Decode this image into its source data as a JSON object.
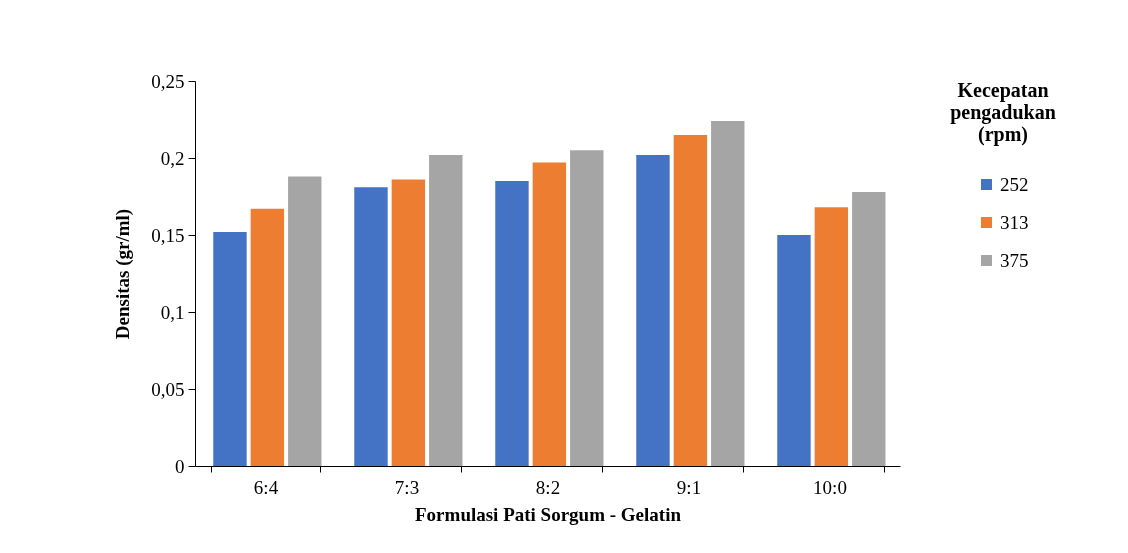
{
  "chart_data": {
    "type": "bar",
    "xlabel": "Formulasi Pati Sorgum - Gelatin",
    "ylabel": "Densitas (gr/ml)",
    "legend_title": "Kecepatan pengadukan (rpm)",
    "categories": [
      "6:4",
      "7:3",
      "8:2",
      "9:1",
      "10:0"
    ],
    "series": [
      {
        "name": "252",
        "color": "#4472c4",
        "values": [
          0.152,
          0.181,
          0.185,
          0.202,
          0.15
        ]
      },
      {
        "name": "313",
        "color": "#ed7d31",
        "values": [
          0.167,
          0.186,
          0.197,
          0.215,
          0.168
        ]
      },
      {
        "name": "375",
        "color": "#a5a5a5",
        "values": [
          0.188,
          0.202,
          0.205,
          0.224,
          0.178
        ]
      }
    ],
    "ylim": [
      0,
      0.25
    ],
    "yticks": [
      0,
      {
        "value": 0.05,
        "label": "0,05"
      },
      {
        "value": 0.1,
        "label": "0,1"
      },
      {
        "value": 0.15,
        "label": "0,15"
      },
      {
        "value": 0.2,
        "label": "0,2"
      },
      {
        "value": 0.25,
        "label": "0,25"
      }
    ],
    "grid": false,
    "legend": "right"
  }
}
